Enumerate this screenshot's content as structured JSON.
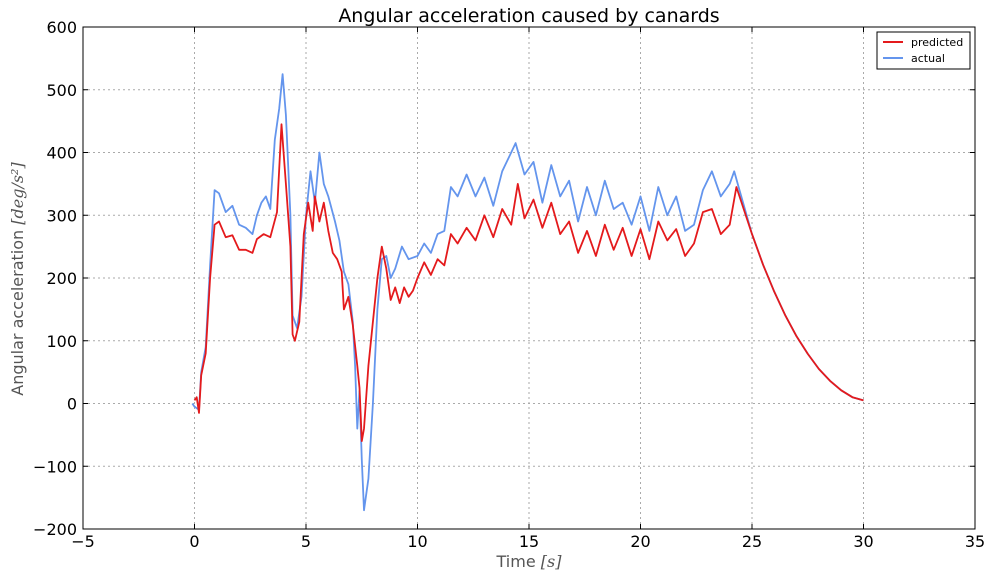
{
  "chart_data": {
    "type": "line",
    "title": "Angular acceleration caused by canards",
    "xlabel": "Time [s]",
    "ylabel": "Angular acceleration [deg/s^2]",
    "xlabel_main": "Time ",
    "xlabel_unit": "[s]",
    "ylabel_main": "Angular acceleration ",
    "ylabel_unit": "[deg/s²]",
    "xlim": [
      -5,
      35
    ],
    "ylim": [
      -200,
      600
    ],
    "x_ticks": [
      "−5",
      "0",
      "5",
      "10",
      "15",
      "20",
      "25",
      "30",
      "35"
    ],
    "y_ticks": [
      "−200",
      "−100",
      "0",
      "100",
      "200",
      "300",
      "400",
      "500",
      "600"
    ],
    "x_tick_values": [
      -5,
      0,
      5,
      10,
      15,
      20,
      25,
      30,
      35
    ],
    "y_tick_values": [
      -200,
      -100,
      0,
      100,
      200,
      300,
      400,
      500,
      600
    ],
    "grid": true,
    "legend_position": "top-right",
    "series": [
      {
        "name": "predicted",
        "color": "#e41a1c",
        "points": [
          [
            0.0,
            5
          ],
          [
            0.1,
            10
          ],
          [
            0.2,
            -15
          ],
          [
            0.3,
            45
          ],
          [
            0.5,
            80
          ],
          [
            0.7,
            200
          ],
          [
            0.9,
            285
          ],
          [
            1.1,
            290
          ],
          [
            1.4,
            265
          ],
          [
            1.7,
            268
          ],
          [
            2.0,
            245
          ],
          [
            2.3,
            245
          ],
          [
            2.6,
            240
          ],
          [
            2.8,
            262
          ],
          [
            3.1,
            270
          ],
          [
            3.4,
            265
          ],
          [
            3.7,
            305
          ],
          [
            3.9,
            445
          ],
          [
            4.1,
            350
          ],
          [
            4.3,
            250
          ],
          [
            4.4,
            110
          ],
          [
            4.5,
            100
          ],
          [
            4.7,
            130
          ],
          [
            4.9,
            270
          ],
          [
            5.1,
            320
          ],
          [
            5.3,
            275
          ],
          [
            5.4,
            330
          ],
          [
            5.6,
            290
          ],
          [
            5.8,
            320
          ],
          [
            6.0,
            275
          ],
          [
            6.2,
            240
          ],
          [
            6.4,
            230
          ],
          [
            6.6,
            210
          ],
          [
            6.7,
            150
          ],
          [
            6.9,
            170
          ],
          [
            7.1,
            125
          ],
          [
            7.3,
            60
          ],
          [
            7.4,
            25
          ],
          [
            7.5,
            -60
          ],
          [
            7.6,
            -40
          ],
          [
            7.8,
            60
          ],
          [
            8.0,
            130
          ],
          [
            8.2,
            200
          ],
          [
            8.4,
            250
          ],
          [
            8.6,
            215
          ],
          [
            8.8,
            165
          ],
          [
            9.0,
            185
          ],
          [
            9.2,
            160
          ],
          [
            9.4,
            185
          ],
          [
            9.6,
            170
          ],
          [
            9.8,
            180
          ],
          [
            10.0,
            200
          ],
          [
            10.3,
            225
          ],
          [
            10.6,
            205
          ],
          [
            10.9,
            230
          ],
          [
            11.2,
            220
          ],
          [
            11.5,
            270
          ],
          [
            11.8,
            255
          ],
          [
            12.2,
            280
          ],
          [
            12.6,
            260
          ],
          [
            13.0,
            300
          ],
          [
            13.4,
            265
          ],
          [
            13.8,
            310
          ],
          [
            14.2,
            285
          ],
          [
            14.5,
            350
          ],
          [
            14.8,
            295
          ],
          [
            15.2,
            325
          ],
          [
            15.6,
            280
          ],
          [
            16.0,
            320
          ],
          [
            16.4,
            270
          ],
          [
            16.8,
            290
          ],
          [
            17.2,
            240
          ],
          [
            17.6,
            275
          ],
          [
            18.0,
            235
          ],
          [
            18.4,
            285
          ],
          [
            18.8,
            245
          ],
          [
            19.2,
            280
          ],
          [
            19.6,
            235
          ],
          [
            20.0,
            278
          ],
          [
            20.4,
            230
          ],
          [
            20.8,
            290
          ],
          [
            21.2,
            260
          ],
          [
            21.6,
            278
          ],
          [
            22.0,
            235
          ],
          [
            22.4,
            255
          ],
          [
            22.8,
            305
          ],
          [
            23.2,
            310
          ],
          [
            23.6,
            270
          ],
          [
            24.0,
            285
          ],
          [
            24.3,
            345
          ],
          [
            25.0,
            270
          ],
          [
            25.5,
            221
          ],
          [
            26.0,
            178
          ],
          [
            26.5,
            140
          ],
          [
            27.0,
            107
          ],
          [
            27.5,
            79
          ],
          [
            28.0,
            55
          ],
          [
            28.5,
            36
          ],
          [
            29.0,
            21
          ],
          [
            29.5,
            10
          ],
          [
            30.0,
            5
          ]
        ]
      },
      {
        "name": "actual",
        "color": "#6495ed",
        "points": [
          [
            -0.1,
            0
          ],
          [
            0.0,
            -5
          ],
          [
            0.2,
            -10
          ],
          [
            0.3,
            50
          ],
          [
            0.5,
            90
          ],
          [
            0.7,
            220
          ],
          [
            0.9,
            340
          ],
          [
            1.1,
            335
          ],
          [
            1.4,
            305
          ],
          [
            1.7,
            315
          ],
          [
            2.0,
            285
          ],
          [
            2.3,
            280
          ],
          [
            2.6,
            270
          ],
          [
            2.8,
            300
          ],
          [
            3.0,
            320
          ],
          [
            3.2,
            330
          ],
          [
            3.4,
            310
          ],
          [
            3.6,
            420
          ],
          [
            3.8,
            470
          ],
          [
            3.95,
            525
          ],
          [
            4.1,
            460
          ],
          [
            4.3,
            300
          ],
          [
            4.4,
            140
          ],
          [
            4.6,
            120
          ],
          [
            4.8,
            170
          ],
          [
            5.0,
            300
          ],
          [
            5.2,
            370
          ],
          [
            5.4,
            320
          ],
          [
            5.6,
            400
          ],
          [
            5.8,
            350
          ],
          [
            6.0,
            330
          ],
          [
            6.3,
            290
          ],
          [
            6.5,
            260
          ],
          [
            6.7,
            210
          ],
          [
            6.9,
            190
          ],
          [
            7.1,
            130
          ],
          [
            7.2,
            60
          ],
          [
            7.3,
            -40
          ],
          [
            7.4,
            20
          ],
          [
            7.5,
            -90
          ],
          [
            7.6,
            -170
          ],
          [
            7.8,
            -120
          ],
          [
            8.0,
            0
          ],
          [
            8.2,
            150
          ],
          [
            8.4,
            230
          ],
          [
            8.6,
            235
          ],
          [
            8.8,
            200
          ],
          [
            9.0,
            215
          ],
          [
            9.3,
            250
          ],
          [
            9.6,
            230
          ],
          [
            10.0,
            235
          ],
          [
            10.3,
            255
          ],
          [
            10.6,
            240
          ],
          [
            10.9,
            270
          ],
          [
            11.2,
            275
          ],
          [
            11.5,
            345
          ],
          [
            11.8,
            330
          ],
          [
            12.2,
            365
          ],
          [
            12.6,
            330
          ],
          [
            13.0,
            360
          ],
          [
            13.4,
            315
          ],
          [
            13.8,
            370
          ],
          [
            14.2,
            400
          ],
          [
            14.4,
            415
          ],
          [
            14.8,
            365
          ],
          [
            15.2,
            385
          ],
          [
            15.6,
            320
          ],
          [
            16.0,
            380
          ],
          [
            16.4,
            330
          ],
          [
            16.8,
            355
          ],
          [
            17.2,
            290
          ],
          [
            17.6,
            345
          ],
          [
            18.0,
            300
          ],
          [
            18.4,
            355
          ],
          [
            18.8,
            310
          ],
          [
            19.2,
            320
          ],
          [
            19.6,
            285
          ],
          [
            20.0,
            330
          ],
          [
            20.4,
            275
          ],
          [
            20.8,
            345
          ],
          [
            21.2,
            300
          ],
          [
            21.6,
            330
          ],
          [
            22.0,
            275
          ],
          [
            22.4,
            285
          ],
          [
            22.8,
            340
          ],
          [
            23.2,
            370
          ],
          [
            23.6,
            330
          ],
          [
            24.0,
            350
          ],
          [
            24.2,
            370
          ],
          [
            24.4,
            345
          ],
          [
            25.0,
            270
          ],
          [
            25.5,
            221
          ],
          [
            26.0,
            178
          ],
          [
            26.5,
            140
          ],
          [
            27.0,
            107
          ],
          [
            27.5,
            79
          ],
          [
            28.0,
            55
          ],
          [
            28.5,
            36
          ],
          [
            29.0,
            21
          ],
          [
            29.5,
            10
          ],
          [
            30.0,
            5
          ]
        ]
      }
    ]
  }
}
